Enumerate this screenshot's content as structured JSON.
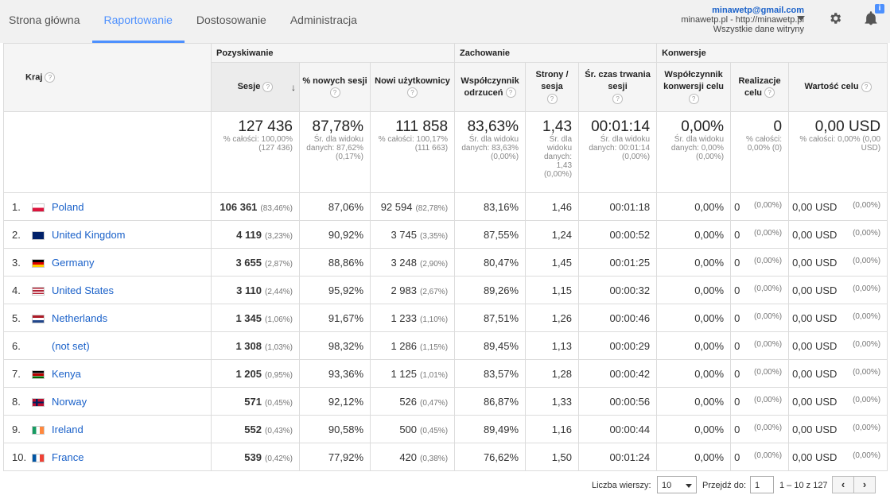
{
  "nav": {
    "items": [
      "Strona główna",
      "Raportowanie",
      "Dostosowanie",
      "Administracja"
    ],
    "active_index": 1
  },
  "account": {
    "email": "minawetp@gmail.com",
    "site": "minawetp.pl - http://minawetp.pl",
    "view": "Wszystkie dane witryny",
    "notification_badge": "i"
  },
  "table": {
    "group_headers": {
      "acquisition": "Pozyskiwanie",
      "behavior": "Zachowanie",
      "conversions": "Konwersje"
    },
    "columns": {
      "country": "Kraj",
      "sessions": "Sesje",
      "new_sessions_pct": "% nowych sesji",
      "new_users": "Nowi użytkownicy",
      "bounce_rate": "Współczynnik odrzuceń",
      "pages_per_session": "Strony / sesja",
      "avg_duration": "Śr. czas trwania sesji",
      "conv_rate": "Współczynnik konwersji celu",
      "completions": "Realizacje celu",
      "goal_value": "Wartość celu"
    },
    "help_glyph": "?",
    "sort_arrow": "↓",
    "totals": {
      "sessions": {
        "value": "127 436",
        "sub": "% całości: 100,00% (127 436)"
      },
      "new_sessions_pct": {
        "value": "87,78%",
        "sub": "Śr. dla widoku danych: 87,62% (0,17%)"
      },
      "new_users": {
        "value": "111 858",
        "sub": "% całości: 100,17% (111 663)"
      },
      "bounce_rate": {
        "value": "83,63%",
        "sub": "Śr. dla widoku danych: 83,63% (0,00%)"
      },
      "pages_per_session": {
        "value": "1,43",
        "sub": "Śr. dla widoku danych: 1,43 (0,00%)"
      },
      "avg_duration": {
        "value": "00:01:14",
        "sub": "Śr. dla widoku danych: 00:01:14 (0,00%)"
      },
      "conv_rate": {
        "value": "0,00%",
        "sub": "Śr. dla widoku danych: 0,00% (0,00%)"
      },
      "completions": {
        "value": "0",
        "sub": "% całości: 0,00% (0)"
      },
      "goal_value": {
        "value": "0,00 USD",
        "sub": "% całości: 0,00% (0,00 USD)"
      }
    },
    "rows": [
      {
        "idx": "1.",
        "country": "Poland",
        "flag": "pl",
        "sessions": "106 361",
        "sessions_pct": "(83,46%)",
        "new_pct": "87,06%",
        "new_users": "92 594",
        "new_users_pct": "(82,78%)",
        "bounce": "83,16%",
        "pages": "1,46",
        "duration": "00:01:18",
        "conv": "0,00%",
        "compl": "0",
        "compl_pct": "(0,00%)",
        "value": "0,00 USD",
        "value_pct": "(0,00%)"
      },
      {
        "idx": "2.",
        "country": "United Kingdom",
        "flag": "gb",
        "sessions": "4 119",
        "sessions_pct": "(3,23%)",
        "new_pct": "90,92%",
        "new_users": "3 745",
        "new_users_pct": "(3,35%)",
        "bounce": "87,55%",
        "pages": "1,24",
        "duration": "00:00:52",
        "conv": "0,00%",
        "compl": "0",
        "compl_pct": "(0,00%)",
        "value": "0,00 USD",
        "value_pct": "(0,00%)"
      },
      {
        "idx": "3.",
        "country": "Germany",
        "flag": "de",
        "sessions": "3 655",
        "sessions_pct": "(2,87%)",
        "new_pct": "88,86%",
        "new_users": "3 248",
        "new_users_pct": "(2,90%)",
        "bounce": "80,47%",
        "pages": "1,45",
        "duration": "00:01:25",
        "conv": "0,00%",
        "compl": "0",
        "compl_pct": "(0,00%)",
        "value": "0,00 USD",
        "value_pct": "(0,00%)"
      },
      {
        "idx": "4.",
        "country": "United States",
        "flag": "us",
        "sessions": "3 110",
        "sessions_pct": "(2,44%)",
        "new_pct": "95,92%",
        "new_users": "2 983",
        "new_users_pct": "(2,67%)",
        "bounce": "89,26%",
        "pages": "1,15",
        "duration": "00:00:32",
        "conv": "0,00%",
        "compl": "0",
        "compl_pct": "(0,00%)",
        "value": "0,00 USD",
        "value_pct": "(0,00%)"
      },
      {
        "idx": "5.",
        "country": "Netherlands",
        "flag": "nl",
        "sessions": "1 345",
        "sessions_pct": "(1,06%)",
        "new_pct": "91,67%",
        "new_users": "1 233",
        "new_users_pct": "(1,10%)",
        "bounce": "87,51%",
        "pages": "1,26",
        "duration": "00:00:46",
        "conv": "0,00%",
        "compl": "0",
        "compl_pct": "(0,00%)",
        "value": "0,00 USD",
        "value_pct": "(0,00%)"
      },
      {
        "idx": "6.",
        "country": "(not set)",
        "flag": "",
        "sessions": "1 308",
        "sessions_pct": "(1,03%)",
        "new_pct": "98,32%",
        "new_users": "1 286",
        "new_users_pct": "(1,15%)",
        "bounce": "89,45%",
        "pages": "1,13",
        "duration": "00:00:29",
        "conv": "0,00%",
        "compl": "0",
        "compl_pct": "(0,00%)",
        "value": "0,00 USD",
        "value_pct": "(0,00%)"
      },
      {
        "idx": "7.",
        "country": "Kenya",
        "flag": "ke",
        "sessions": "1 205",
        "sessions_pct": "(0,95%)",
        "new_pct": "93,36%",
        "new_users": "1 125",
        "new_users_pct": "(1,01%)",
        "bounce": "83,57%",
        "pages": "1,28",
        "duration": "00:00:42",
        "conv": "0,00%",
        "compl": "0",
        "compl_pct": "(0,00%)",
        "value": "0,00 USD",
        "value_pct": "(0,00%)"
      },
      {
        "idx": "8.",
        "country": "Norway",
        "flag": "no",
        "sessions": "571",
        "sessions_pct": "(0,45%)",
        "new_pct": "92,12%",
        "new_users": "526",
        "new_users_pct": "(0,47%)",
        "bounce": "86,87%",
        "pages": "1,33",
        "duration": "00:00:56",
        "conv": "0,00%",
        "compl": "0",
        "compl_pct": "(0,00%)",
        "value": "0,00 USD",
        "value_pct": "(0,00%)"
      },
      {
        "idx": "9.",
        "country": "Ireland",
        "flag": "ie",
        "sessions": "552",
        "sessions_pct": "(0,43%)",
        "new_pct": "90,58%",
        "new_users": "500",
        "new_users_pct": "(0,45%)",
        "bounce": "89,49%",
        "pages": "1,16",
        "duration": "00:00:44",
        "conv": "0,00%",
        "compl": "0",
        "compl_pct": "(0,00%)",
        "value": "0,00 USD",
        "value_pct": "(0,00%)"
      },
      {
        "idx": "10.",
        "country": "France",
        "flag": "fr",
        "sessions": "539",
        "sessions_pct": "(0,42%)",
        "new_pct": "77,92%",
        "new_users": "420",
        "new_users_pct": "(0,38%)",
        "bounce": "76,62%",
        "pages": "1,50",
        "duration": "00:01:24",
        "conv": "0,00%",
        "compl": "0",
        "compl_pct": "(0,00%)",
        "value": "0,00 USD",
        "value_pct": "(0,00%)"
      }
    ]
  },
  "footer": {
    "rows_label": "Liczba wierszy:",
    "rows_value": "10",
    "goto_label": "Przejdź do:",
    "goto_value": "1",
    "range": "1 – 10 z 127",
    "prev": "‹",
    "next": "›"
  }
}
